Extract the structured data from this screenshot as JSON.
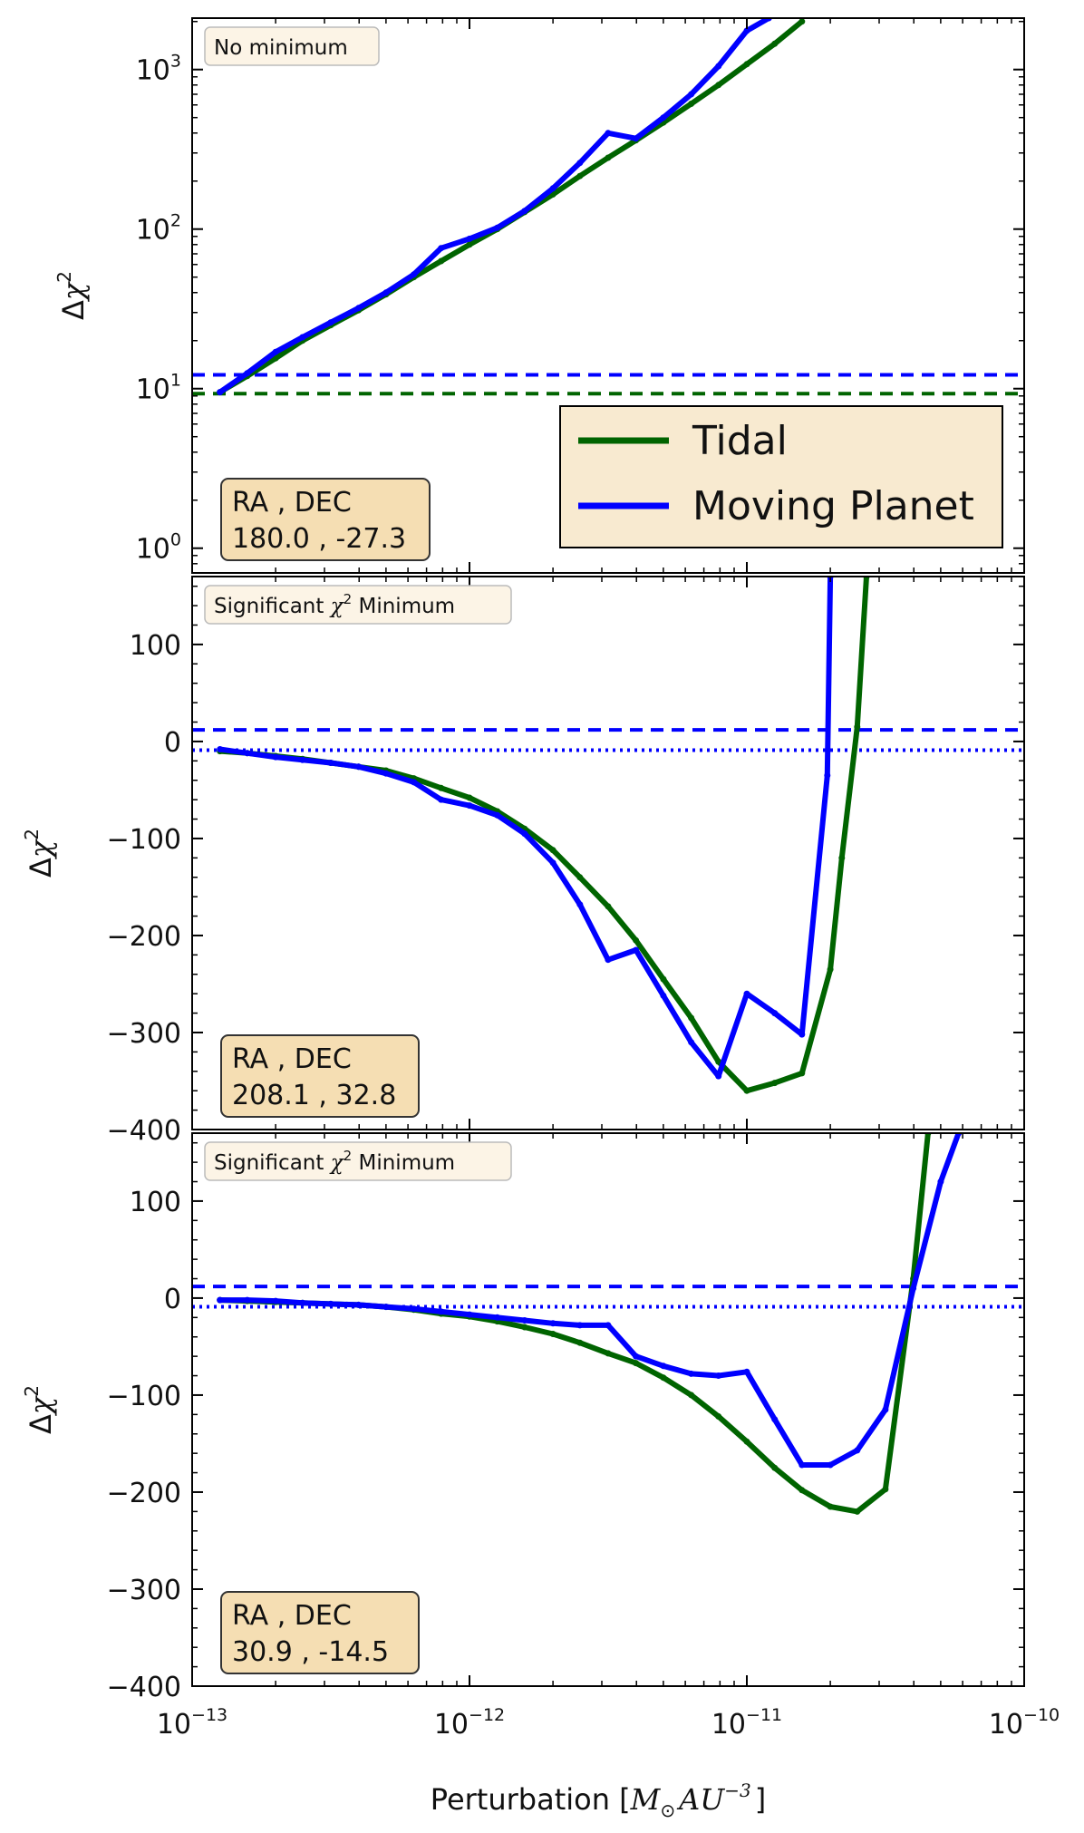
{
  "colors": {
    "tidal": "#006400",
    "moving_planet": "#0000ff",
    "note_box": "#fcf4e6",
    "coord_box": "#f5deb3",
    "legend_box": "#f8ead0",
    "frame": "#000000"
  },
  "xlabel": {
    "prefix": "Perturbation [",
    "msun": "M",
    "sun_sub": "⊙",
    "au": "AU",
    "au_sup": "−3",
    "suffix": "]"
  },
  "ylabel": {
    "delta": "Δ",
    "chi": "χ",
    "sup": "2"
  },
  "x_axis": {
    "scale": "log",
    "xlim": [
      1e-13,
      1e-10
    ],
    "ticks": [
      {
        "value": 1e-13,
        "base": "10",
        "exp": "−13"
      },
      {
        "value": 1e-12,
        "base": "10",
        "exp": "−12"
      },
      {
        "value": 1e-11,
        "base": "10",
        "exp": "−11"
      },
      {
        "value": 1e-10,
        "base": "10",
        "exp": "−10"
      }
    ]
  },
  "legend": {
    "placement": "lower-right (top panel)",
    "entries": [
      {
        "label": "Tidal",
        "series": "tidal"
      },
      {
        "label": "Moving Planet",
        "series": "moving_planet"
      }
    ]
  },
  "chart_data": [
    {
      "type": "line",
      "panel": "top",
      "yscale": "log",
      "ylim": [
        0.7,
        2100
      ],
      "yticks": [
        {
          "value": 1,
          "base": "10",
          "exp": "0"
        },
        {
          "value": 10,
          "base": "10",
          "exp": "1"
        },
        {
          "value": 100,
          "base": "10",
          "exp": "2"
        },
        {
          "value": 1000,
          "base": "10",
          "exp": "3"
        }
      ],
      "note": {
        "text": "No minimum",
        "chi": "",
        "sup": "",
        "rest": ""
      },
      "coords": {
        "header": "RA , DEC",
        "values": "180.0 , -27.3"
      },
      "series": [
        {
          "key": "tidal",
          "x": [
            1.26e-13,
            1.58e-13,
            2e-13,
            2.5e-13,
            3.16e-13,
            3.98e-13,
            5e-13,
            6.3e-13,
            7.9e-13,
            1e-12,
            1.26e-12,
            1.58e-12,
            2e-12,
            2.5e-12,
            3.16e-12,
            3.98e-12,
            5e-12,
            6.3e-12,
            7.9e-12,
            1e-11,
            1.26e-11,
            1.58e-11
          ],
          "y": [
            9.5,
            12,
            15.5,
            20,
            25,
            31,
            39,
            50,
            63,
            80,
            100,
            128,
            165,
            215,
            280,
            360,
            465,
            610,
            800,
            1080,
            1450,
            2000
          ]
        },
        {
          "key": "moving_planet",
          "x": [
            1.26e-13,
            1.58e-13,
            2e-13,
            2.5e-13,
            3.16e-13,
            3.98e-13,
            5e-13,
            6.3e-13,
            7.9e-13,
            1e-12,
            1.26e-12,
            1.58e-12,
            2e-12,
            2.5e-12,
            3.16e-12,
            3.98e-12,
            5e-12,
            6.3e-12,
            7.9e-12,
            1e-11,
            1.2e-11
          ],
          "y": [
            9.5,
            12.5,
            17,
            21,
            26,
            32,
            40,
            52,
            76,
            87,
            102,
            130,
            180,
            260,
            400,
            370,
            500,
            700,
            1050,
            1750,
            2100
          ]
        }
      ],
      "thresholds": [
        {
          "series": "tidal",
          "style": "dashed",
          "y": 9.3
        },
        {
          "series": "moving_planet",
          "style": "dashed",
          "y": 12.2
        }
      ]
    },
    {
      "type": "line",
      "panel": "middle",
      "yscale": "linear",
      "ylim": [
        -400,
        170
      ],
      "yticks": [
        {
          "value": -400,
          "label": "−400"
        },
        {
          "value": -300,
          "label": "−300"
        },
        {
          "value": -200,
          "label": "−200"
        },
        {
          "value": -100,
          "label": "−100"
        },
        {
          "value": 0,
          "label": "0"
        },
        {
          "value": 100,
          "label": "100"
        }
      ],
      "note": {
        "text": "Significant ",
        "chi": "χ",
        "sup": "2",
        "rest": " Minimum"
      },
      "coords": {
        "header": "RA , DEC",
        "values": "208.1 , 32.8"
      },
      "series": [
        {
          "key": "tidal",
          "x": [
            1.26e-13,
            1.58e-13,
            2e-13,
            2.5e-13,
            3.16e-13,
            3.98e-13,
            5e-13,
            6.3e-13,
            7.9e-13,
            1e-12,
            1.26e-12,
            1.58e-12,
            2e-12,
            2.5e-12,
            3.16e-12,
            3.98e-12,
            5e-12,
            6.3e-12,
            7.9e-12,
            1e-11,
            1.26e-11,
            1.58e-11,
            2e-11,
            2.2e-11,
            2.5e-11,
            2.7e-11
          ],
          "y": [
            -10,
            -12,
            -15,
            -18,
            -22,
            -26,
            -30,
            -38,
            -48,
            -58,
            -72,
            -90,
            -112,
            -140,
            -170,
            -205,
            -245,
            -285,
            -330,
            -360,
            -352,
            -342,
            -235,
            -120,
            15,
            170
          ]
        },
        {
          "key": "moving_planet",
          "x": [
            1.26e-13,
            1.58e-13,
            2e-13,
            2.5e-13,
            3.16e-13,
            3.98e-13,
            5e-13,
            6.3e-13,
            7.9e-13,
            1e-12,
            1.26e-12,
            1.58e-12,
            2e-12,
            2.5e-12,
            3.16e-12,
            3.98e-12,
            5e-12,
            6.3e-12,
            7.9e-12,
            1e-11,
            1.26e-11,
            1.58e-11,
            1.95e-11,
            2e-11
          ],
          "y": [
            -8,
            -12,
            -16,
            -19,
            -22,
            -26,
            -33,
            -42,
            -60,
            -66,
            -76,
            -95,
            -125,
            -168,
            -225,
            -215,
            -262,
            -310,
            -345,
            -260,
            -280,
            -302,
            -35,
            170
          ]
        }
      ],
      "thresholds": [
        {
          "series": "moving_planet",
          "style": "dashed",
          "y": 12
        },
        {
          "series": "moving_planet",
          "style": "dotted",
          "y": -9
        }
      ]
    },
    {
      "type": "line",
      "panel": "bottom",
      "yscale": "linear",
      "ylim": [
        -400,
        170
      ],
      "yticks": [
        {
          "value": -400,
          "label": "−400"
        },
        {
          "value": -300,
          "label": "−300"
        },
        {
          "value": -200,
          "label": "−200"
        },
        {
          "value": -100,
          "label": "−100"
        },
        {
          "value": 0,
          "label": "0"
        },
        {
          "value": 100,
          "label": "100"
        }
      ],
      "note": {
        "text": "Significant ",
        "chi": "χ",
        "sup": "2",
        "rest": " Minimum"
      },
      "coords": {
        "header": "RA , DEC",
        "values": "30.9 , -14.5"
      },
      "series": [
        {
          "key": "tidal",
          "x": [
            1.26e-13,
            1.58e-13,
            2e-13,
            2.5e-13,
            3.16e-13,
            3.98e-13,
            5e-13,
            6.3e-13,
            7.9e-13,
            1e-12,
            1.26e-12,
            1.58e-12,
            2e-12,
            2.5e-12,
            3.16e-12,
            3.98e-12,
            5e-12,
            6.3e-12,
            7.9e-12,
            1e-11,
            1.26e-11,
            1.58e-11,
            2e-11,
            2.5e-11,
            3.16e-11,
            3.98e-11,
            4.5e-11
          ],
          "y": [
            -2,
            -3,
            -4,
            -5,
            -6,
            -7,
            -9,
            -12,
            -16,
            -19,
            -24,
            -30,
            -37,
            -46,
            -57,
            -67,
            -82,
            -100,
            -122,
            -148,
            -175,
            -198,
            -215,
            -220,
            -197,
            20,
            170
          ]
        },
        {
          "key": "moving_planet",
          "x": [
            1.26e-13,
            1.58e-13,
            2e-13,
            2.5e-13,
            3.16e-13,
            3.98e-13,
            5e-13,
            6.3e-13,
            7.9e-13,
            1e-12,
            1.26e-12,
            1.58e-12,
            2e-12,
            2.5e-12,
            3.16e-12,
            3.98e-12,
            5e-12,
            6.3e-12,
            7.9e-12,
            1e-11,
            1.26e-11,
            1.58e-11,
            2e-11,
            2.5e-11,
            3.16e-11,
            3.98e-11,
            5e-11,
            5.8e-11
          ],
          "y": [
            -2,
            -2,
            -3,
            -5,
            -6,
            -7,
            -9,
            -11,
            -14,
            -17,
            -20,
            -23,
            -26,
            -28,
            -28,
            -60,
            -70,
            -78,
            -80,
            -76,
            -125,
            -172,
            -172,
            -157,
            -115,
            10,
            120,
            170
          ]
        }
      ],
      "thresholds": [
        {
          "series": "moving_planet",
          "style": "dashed",
          "y": 12
        },
        {
          "series": "moving_planet",
          "style": "dotted",
          "y": -9
        }
      ]
    }
  ]
}
